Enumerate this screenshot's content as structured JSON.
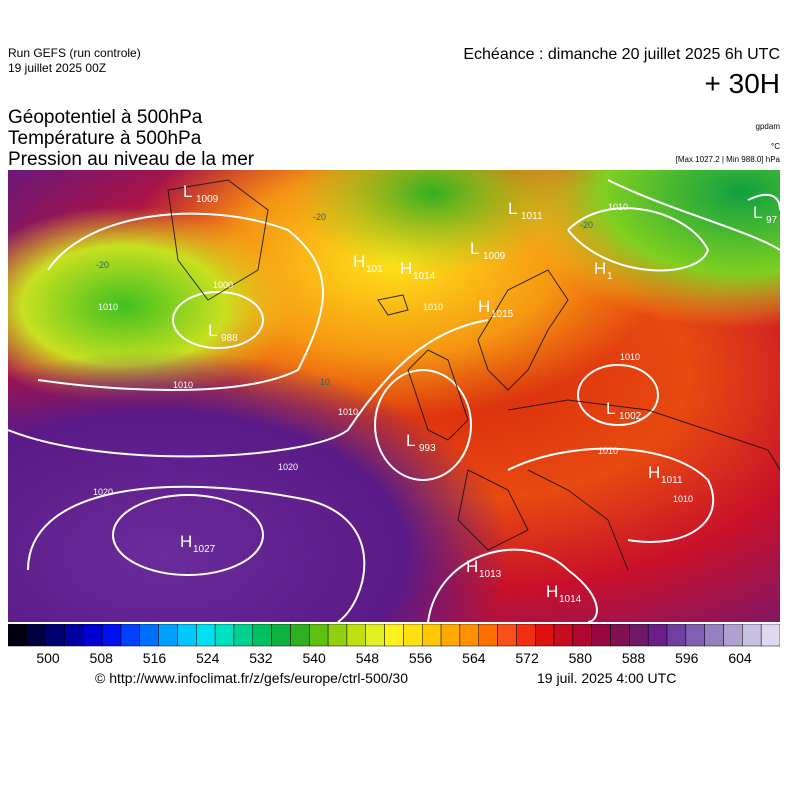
{
  "header": {
    "run": "Run GEFS (run controle)",
    "run_date": "19 juillet 2025 00Z",
    "echeance": "Echéance : dimanche 20 juillet 2025 6h UTC",
    "lead": "+ 30H"
  },
  "titles": [
    "Géopotentiel à 500hPa",
    "Température à 500hPa",
    "Pression au niveau de la mer"
  ],
  "units": {
    "geopotential": "gpdam",
    "temperature": "°C",
    "pressure": "[Max 1027.2 | Min 988.0] hPa"
  },
  "centers": [
    {
      "letter": "L",
      "value": "1009"
    },
    {
      "letter": "H",
      "value": "101"
    },
    {
      "letter": "H",
      "value": "1014"
    },
    {
      "letter": "L",
      "value": "1011"
    },
    {
      "letter": "L",
      "value": "1009"
    },
    {
      "letter": "L",
      "value": "97"
    },
    {
      "letter": "H",
      "value": "1"
    },
    {
      "letter": "H",
      "value": "1015"
    },
    {
      "letter": "L",
      "value": "988"
    },
    {
      "letter": "L",
      "value": "1002"
    },
    {
      "letter": "L",
      "value": "993"
    },
    {
      "letter": "H",
      "value": "1011"
    },
    {
      "letter": "H",
      "value": "1027"
    },
    {
      "letter": "H",
      "value": "1013"
    },
    {
      "letter": "H",
      "value": "1014"
    }
  ],
  "isobar_labels": [
    "1020",
    "1020",
    "1010",
    "1010",
    "1000",
    "1010",
    "1010",
    "1010",
    "1010",
    "1010",
    "1010"
  ],
  "temperature_labels": [
    "-20",
    "-20",
    "10",
    "-20"
  ],
  "colorbar": {
    "ticks": [
      "500",
      "508",
      "516",
      "524",
      "532",
      "540",
      "548",
      "556",
      "564",
      "572",
      "580",
      "588",
      "596",
      "604"
    ]
  },
  "footer": {
    "url": "© http://www.infoclimat.fr/z/gefs/europe/ctrl-500/30",
    "generated": "19 juil. 2025  4:00 UTC"
  }
}
